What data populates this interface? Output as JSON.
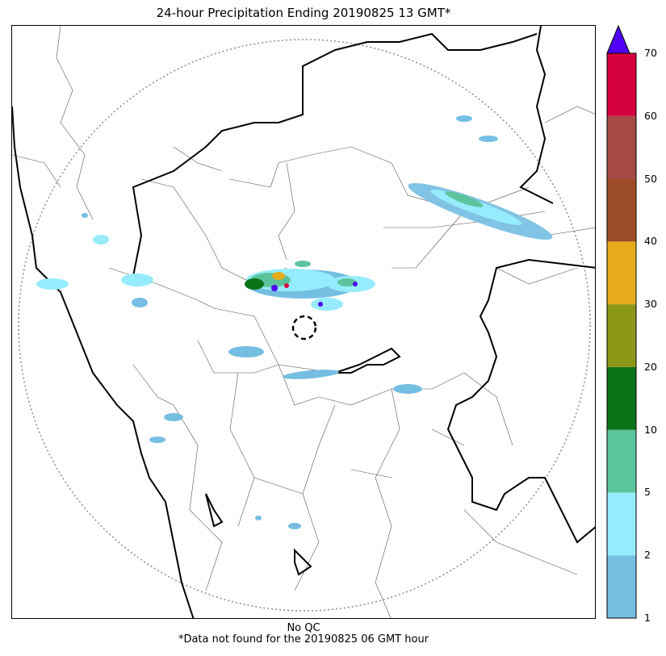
{
  "title": "24-hour Precipitation Ending 20190825 13 GMT*",
  "footer": {
    "line1": "No QC",
    "line2": "*Data not found for the 20190825 06 GMT hour"
  },
  "colorbar": {
    "ticks": [
      "1",
      "2",
      "5",
      "10",
      "20",
      "30",
      "40",
      "50",
      "60",
      "70"
    ],
    "colors": [
      "#74bee2",
      "#96ecfc",
      "#5cc49c",
      "#0d7319",
      "#8c9717",
      "#e6ab1b",
      "#9c4d27",
      "#a64a43",
      "#d5013e"
    ],
    "extend_color": "#5000f5"
  },
  "map": {
    "range_ring_color": "#8c8c8c",
    "radar_site_marker": "dashed-circle"
  }
}
